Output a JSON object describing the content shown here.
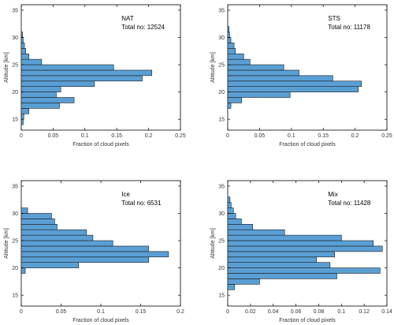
{
  "figure": {
    "background": "#ffffff",
    "bar_color": "#5a9fd4",
    "bar_edge_color": "#1a1a1a",
    "axis_color": "#000000"
  },
  "chart_data": [
    {
      "type": "bar",
      "orientation": "horizontal",
      "annotation": [
        "NAT",
        "Total no: 12524"
      ],
      "xlabel": "Fraction of cloud pixels",
      "ylabel": "Altitude [km]",
      "xlim": [
        0,
        0.25
      ],
      "ylim": [
        13,
        36
      ],
      "xticks": [
        0,
        0.05,
        0.1,
        0.15,
        0.2,
        0.25
      ],
      "xtick_labels": [
        "0",
        "0.05",
        "0.1",
        "0.15",
        "0.2",
        "0.25"
      ],
      "yticks": [
        15,
        20,
        25,
        30,
        35
      ],
      "yticks_labels": [
        "15",
        "20",
        "25",
        "30",
        "35"
      ],
      "bin_width": 1,
      "bins": [
        {
          "altitude": 14.5,
          "value": 0.003
        },
        {
          "altitude": 15.5,
          "value": 0.004
        },
        {
          "altitude": 16.5,
          "value": 0.012
        },
        {
          "altitude": 17.5,
          "value": 0.06
        },
        {
          "altitude": 18.5,
          "value": 0.083
        },
        {
          "altitude": 19.5,
          "value": 0.055
        },
        {
          "altitude": 20.5,
          "value": 0.062
        },
        {
          "altitude": 21.5,
          "value": 0.115
        },
        {
          "altitude": 22.5,
          "value": 0.19
        },
        {
          "altitude": 23.5,
          "value": 0.205
        },
        {
          "altitude": 24.5,
          "value": 0.145
        },
        {
          "altitude": 25.5,
          "value": 0.032
        },
        {
          "altitude": 26.5,
          "value": 0.012
        },
        {
          "altitude": 27.5,
          "value": 0.007
        },
        {
          "altitude": 28.5,
          "value": 0.005
        },
        {
          "altitude": 29.5,
          "value": 0.003
        },
        {
          "altitude": 30.5,
          "value": 0.002
        }
      ]
    },
    {
      "type": "bar",
      "orientation": "horizontal",
      "annotation": [
        "STS",
        "Total no: 11178"
      ],
      "xlabel": "Fraction of cloud pixels",
      "ylabel": "Altitude [km]",
      "xlim": [
        0,
        0.25
      ],
      "ylim": [
        13,
        36
      ],
      "xticks": [
        0,
        0.05,
        0.1,
        0.15,
        0.2,
        0.25
      ],
      "xtick_labels": [
        "0",
        "0.05",
        "0.1",
        "0.15",
        "0.2",
        "0.25"
      ],
      "yticks": [
        15,
        20,
        25,
        30,
        35
      ],
      "yticks_labels": [
        "15",
        "20",
        "25",
        "30",
        "35"
      ],
      "bin_width": 1,
      "bins": [
        {
          "altitude": 17.5,
          "value": 0.005
        },
        {
          "altitude": 18.5,
          "value": 0.022
        },
        {
          "altitude": 19.5,
          "value": 0.098
        },
        {
          "altitude": 20.5,
          "value": 0.205
        },
        {
          "altitude": 21.5,
          "value": 0.21
        },
        {
          "altitude": 22.5,
          "value": 0.165
        },
        {
          "altitude": 23.5,
          "value": 0.112
        },
        {
          "altitude": 24.5,
          "value": 0.088
        },
        {
          "altitude": 25.5,
          "value": 0.035
        },
        {
          "altitude": 26.5,
          "value": 0.025
        },
        {
          "altitude": 27.5,
          "value": 0.012
        },
        {
          "altitude": 28.5,
          "value": 0.01
        },
        {
          "altitude": 29.5,
          "value": 0.005
        },
        {
          "altitude": 30.5,
          "value": 0.003
        },
        {
          "altitude": 31.5,
          "value": 0.002
        }
      ]
    },
    {
      "type": "bar",
      "orientation": "horizontal",
      "annotation": [
        "Ice",
        "Total no: 6531"
      ],
      "xlabel": "Fraction of cloud pixels",
      "ylabel": "Altitude [km]",
      "xlim": [
        0,
        0.2
      ],
      "ylim": [
        13,
        36
      ],
      "xticks": [
        0,
        0.05,
        0.1,
        0.15,
        0.2
      ],
      "xtick_labels": [
        "0",
        "0.05",
        "0.1",
        "0.15",
        "0.2"
      ],
      "yticks": [
        15,
        20,
        25,
        30,
        35
      ],
      "yticks_labels": [
        "15",
        "20",
        "25",
        "30",
        "35"
      ],
      "bin_width": 1,
      "bins": [
        {
          "altitude": 19.5,
          "value": 0.005
        },
        {
          "altitude": 20.5,
          "value": 0.072
        },
        {
          "altitude": 21.5,
          "value": 0.16
        },
        {
          "altitude": 22.5,
          "value": 0.185
        },
        {
          "altitude": 23.5,
          "value": 0.16
        },
        {
          "altitude": 24.5,
          "value": 0.115
        },
        {
          "altitude": 25.5,
          "value": 0.09
        },
        {
          "altitude": 26.5,
          "value": 0.082
        },
        {
          "altitude": 27.5,
          "value": 0.045
        },
        {
          "altitude": 28.5,
          "value": 0.042
        },
        {
          "altitude": 29.5,
          "value": 0.038
        },
        {
          "altitude": 30.5,
          "value": 0.008
        }
      ]
    },
    {
      "type": "bar",
      "orientation": "horizontal",
      "annotation": [
        "Mix",
        "Total no: 11428"
      ],
      "xlabel": "Fraction of cloud pixels",
      "ylabel": "Altitude [km]",
      "xlim": [
        0,
        0.14
      ],
      "ylim": [
        13,
        36
      ],
      "xticks": [
        0,
        0.02,
        0.04,
        0.06,
        0.08,
        0.1,
        0.12,
        0.14
      ],
      "xtick_labels": [
        "0",
        "0.02",
        "0.04",
        "0.06",
        "0.08",
        "0.1",
        "0.12",
        "0.14"
      ],
      "yticks": [
        15,
        20,
        25,
        30,
        35
      ],
      "yticks_labels": [
        "15",
        "20",
        "25",
        "30",
        "35"
      ],
      "bin_width": 1,
      "bins": [
        {
          "altitude": 16.5,
          "value": 0.006
        },
        {
          "altitude": 17.5,
          "value": 0.028
        },
        {
          "altitude": 18.5,
          "value": 0.096
        },
        {
          "altitude": 19.5,
          "value": 0.134
        },
        {
          "altitude": 20.5,
          "value": 0.09
        },
        {
          "altitude": 21.5,
          "value": 0.078
        },
        {
          "altitude": 22.5,
          "value": 0.094
        },
        {
          "altitude": 23.5,
          "value": 0.136
        },
        {
          "altitude": 24.5,
          "value": 0.128
        },
        {
          "altitude": 25.5,
          "value": 0.1
        },
        {
          "altitude": 26.5,
          "value": 0.05
        },
        {
          "altitude": 27.5,
          "value": 0.022
        },
        {
          "altitude": 28.5,
          "value": 0.012
        },
        {
          "altitude": 29.5,
          "value": 0.007
        },
        {
          "altitude": 30.5,
          "value": 0.005
        },
        {
          "altitude": 31.5,
          "value": 0.003
        },
        {
          "altitude": 32.5,
          "value": 0.002
        }
      ]
    }
  ]
}
